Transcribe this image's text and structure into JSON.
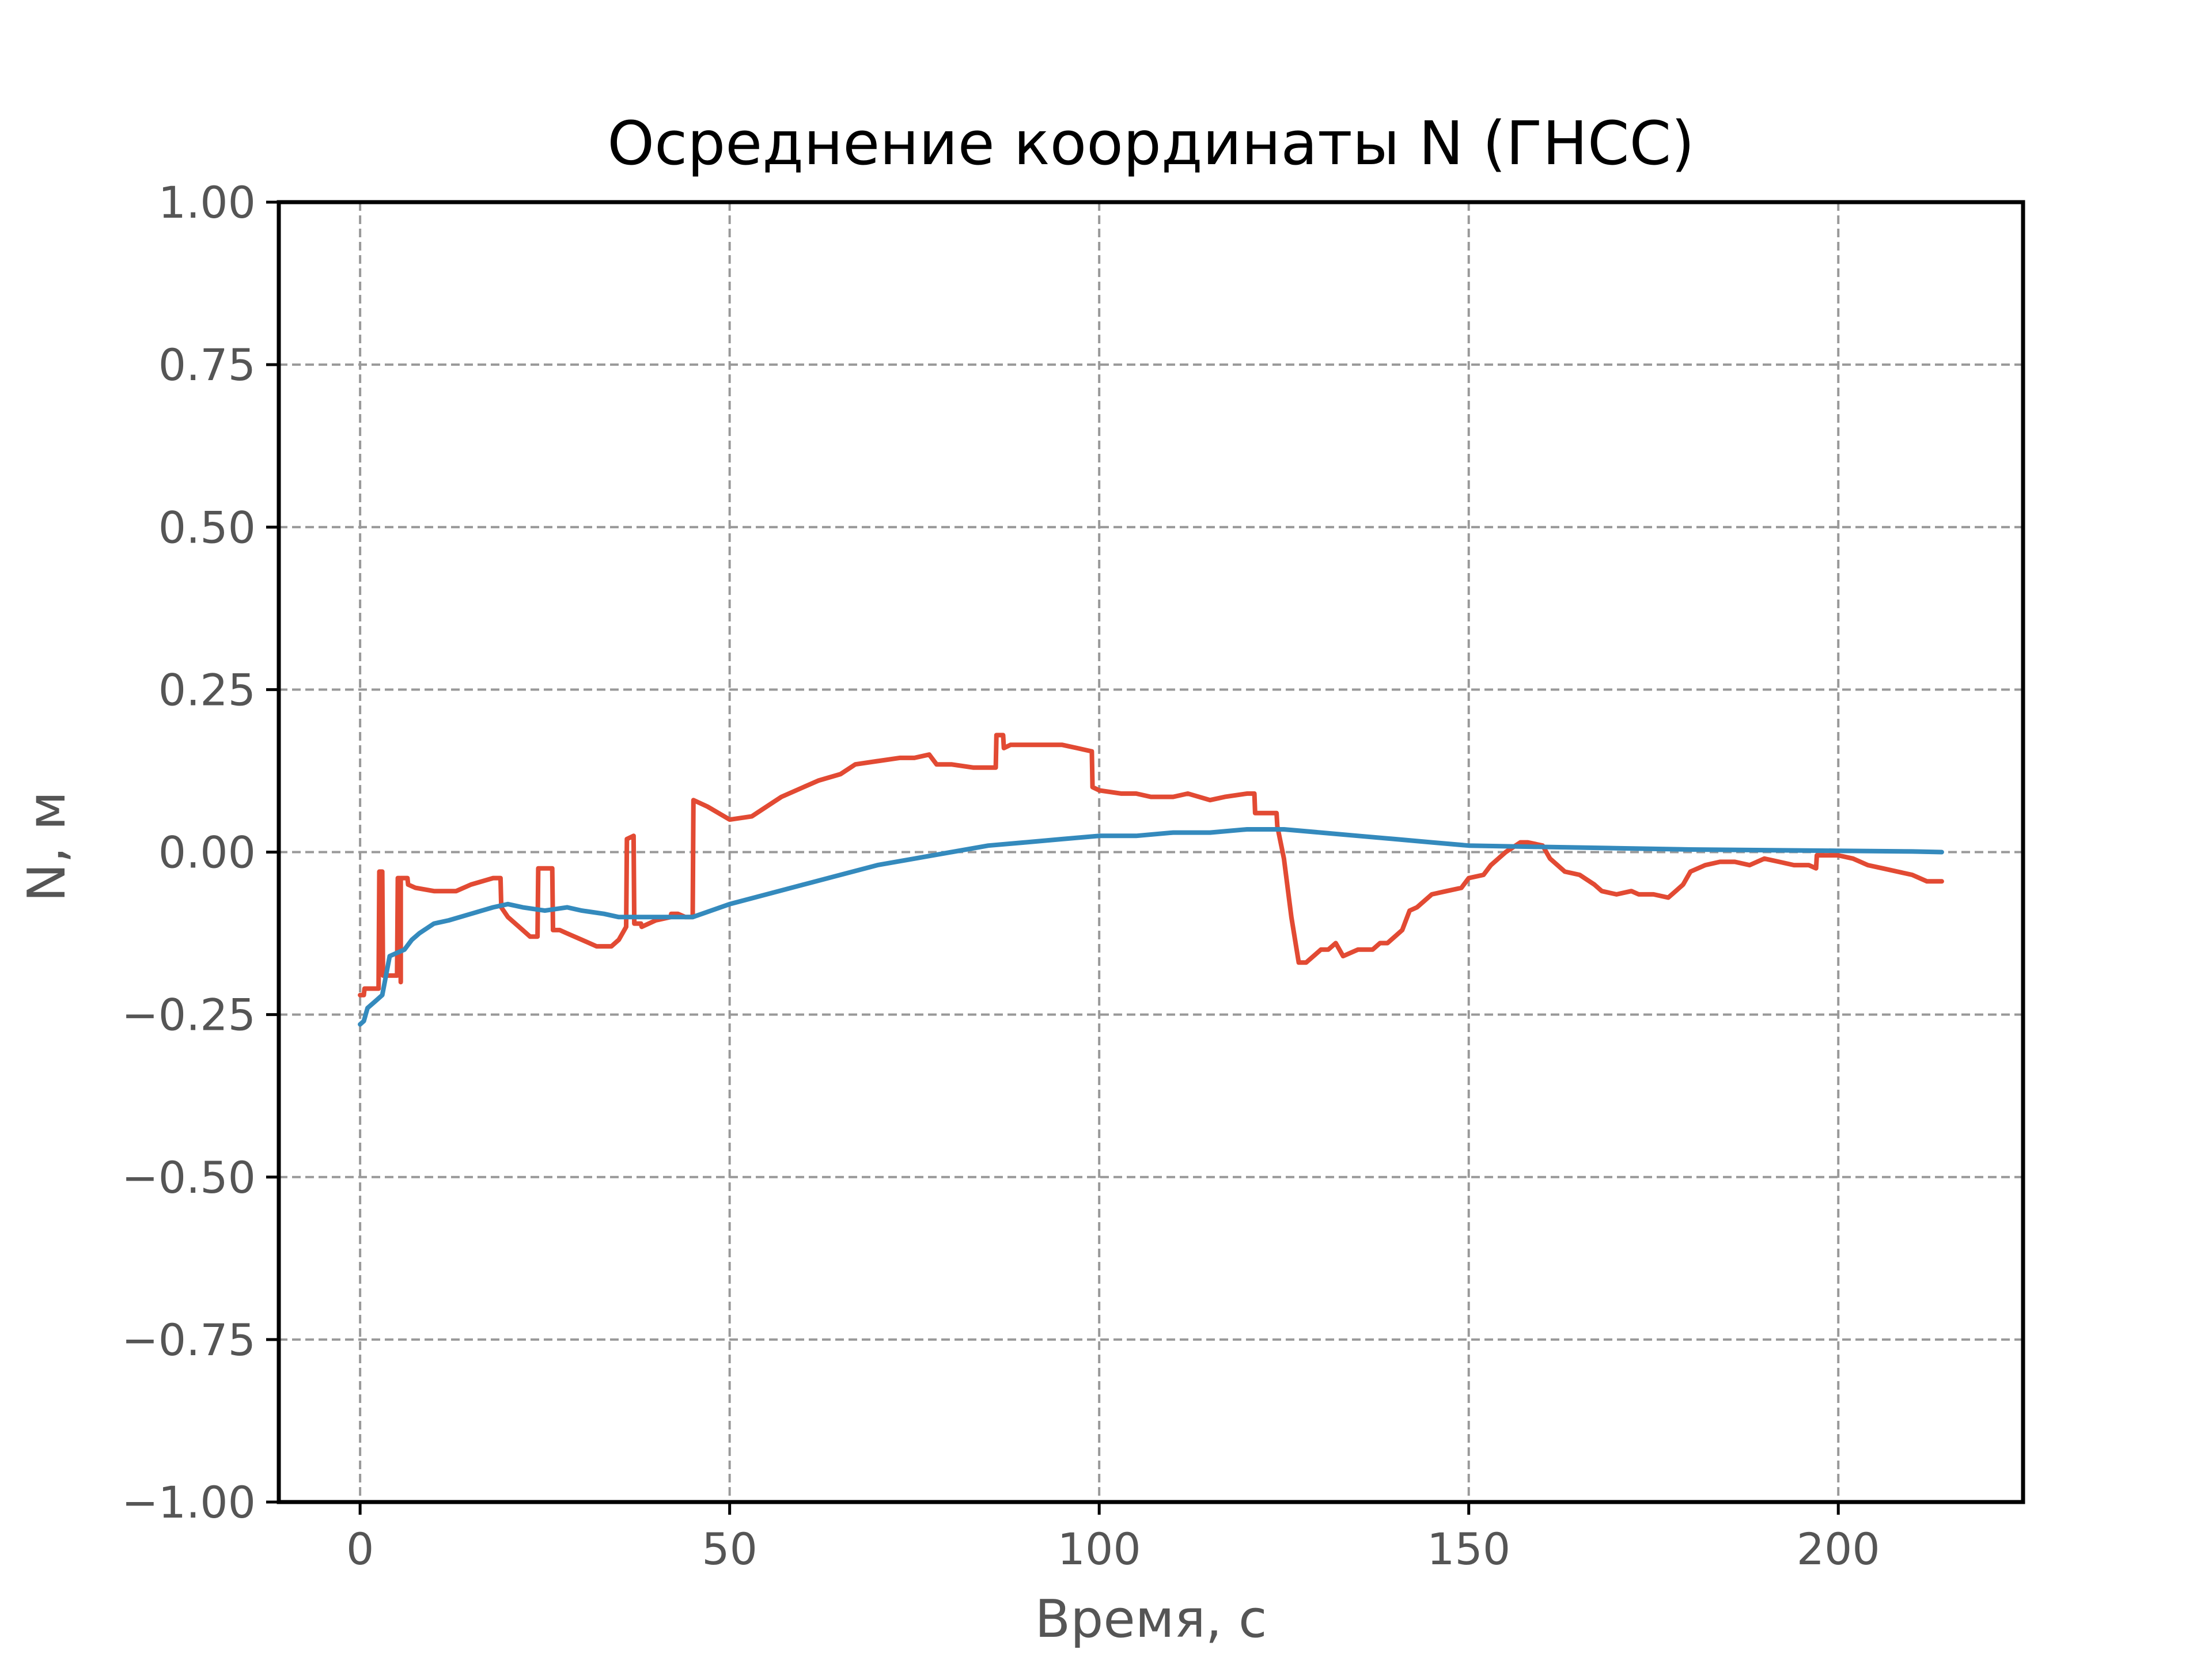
{
  "chart_data": {
    "type": "line",
    "title": "Осреднение координаты N (ГНСС)",
    "xlabel": "Время, с",
    "ylabel": "N, м",
    "xlim": [
      -11,
      225
    ],
    "ylim": [
      -1.0,
      1.0
    ],
    "grid": true,
    "x_ticks": [
      0,
      50,
      100,
      150,
      200
    ],
    "x_tick_labels": [
      "0",
      "50",
      "100",
      "150",
      "200"
    ],
    "y_ticks": [
      1.0,
      0.75,
      0.5,
      0.25,
      0.0,
      -0.25,
      -0.5,
      -0.75,
      -1.0
    ],
    "y_tick_labels": [
      "1.00",
      "0.75",
      "0.50",
      "0.25",
      "0.00",
      "−0.25",
      "−0.50",
      "−0.75",
      "−1.00"
    ],
    "series": [
      {
        "color": "#e24a33",
        "x": [
          0,
          0.5,
          0.6,
          2.5,
          2.6,
          3.0,
          3.1,
          5.0,
          5.1,
          5.4,
          5.5,
          5.5,
          6.4,
          6.5,
          7.5,
          10,
          13,
          15,
          18,
          19,
          19.1,
          20,
          22,
          23,
          24,
          24.1,
          25,
          26,
          26.1,
          27,
          28,
          30,
          32,
          34,
          35,
          36,
          36.1,
          37,
          37.1,
          38,
          38.1,
          40,
          42,
          42.1,
          43,
          44,
          45,
          45.1,
          47,
          50,
          53,
          55,
          57,
          60,
          62,
          65,
          67,
          70,
          73,
          75,
          77,
          78,
          80,
          83,
          85,
          86,
          86.1,
          87,
          87.1,
          88,
          90,
          95,
          97,
          99,
          99.1,
          100,
          103,
          105,
          107,
          110,
          112,
          115,
          117,
          120,
          121,
          121.1,
          123,
          124,
          124.1,
          125,
          126,
          127,
          128,
          130,
          131,
          132,
          133,
          135,
          137,
          138,
          139,
          140,
          141,
          142,
          143,
          145,
          147,
          149,
          150,
          152,
          153,
          155,
          157,
          158,
          160,
          161,
          163,
          165,
          167,
          168,
          170,
          172,
          173,
          175,
          177,
          178,
          179,
          180,
          182,
          184,
          186,
          188,
          190,
          192,
          194,
          196,
          197,
          197.1,
          198,
          200,
          202,
          204,
          206,
          208,
          210,
          212,
          214
        ],
        "y": [
          -0.22,
          -0.22,
          -0.21,
          -0.21,
          -0.03,
          -0.03,
          -0.19,
          -0.19,
          -0.04,
          -0.04,
          -0.2,
          -0.04,
          -0.04,
          -0.05,
          -0.055,
          -0.06,
          -0.06,
          -0.05,
          -0.04,
          -0.04,
          -0.085,
          -0.1,
          -0.12,
          -0.13,
          -0.13,
          -0.025,
          -0.025,
          -0.025,
          -0.12,
          -0.12,
          -0.125,
          -0.135,
          -0.145,
          -0.145,
          -0.135,
          -0.115,
          0.02,
          0.025,
          -0.11,
          -0.11,
          -0.115,
          -0.105,
          -0.1,
          -0.095,
          -0.095,
          -0.1,
          -0.1,
          0.08,
          0.07,
          0.05,
          0.055,
          0.07,
          0.085,
          0.1,
          0.11,
          0.12,
          0.135,
          0.14,
          0.145,
          0.145,
          0.15,
          0.135,
          0.135,
          0.13,
          0.13,
          0.13,
          0.18,
          0.18,
          0.16,
          0.165,
          0.165,
          0.165,
          0.16,
          0.155,
          0.1,
          0.095,
          0.09,
          0.09,
          0.085,
          0.085,
          0.09,
          0.08,
          0.085,
          0.09,
          0.09,
          0.06,
          0.06,
          0.06,
          0.04,
          -0.01,
          -0.1,
          -0.17,
          -0.17,
          -0.15,
          -0.15,
          -0.14,
          -0.16,
          -0.15,
          -0.15,
          -0.14,
          -0.14,
          -0.13,
          -0.12,
          -0.09,
          -0.085,
          -0.065,
          -0.06,
          -0.055,
          -0.04,
          -0.035,
          -0.02,
          0.0,
          0.015,
          0.015,
          0.01,
          -0.01,
          -0.03,
          -0.035,
          -0.05,
          -0.06,
          -0.065,
          -0.06,
          -0.065,
          -0.065,
          -0.07,
          -0.06,
          -0.05,
          -0.03,
          -0.02,
          -0.015,
          -0.015,
          -0.02,
          -0.01,
          -0.015,
          -0.02,
          -0.02,
          -0.025,
          -0.005,
          -0.005,
          -0.005,
          -0.01,
          -0.02,
          -0.025,
          -0.03,
          -0.035,
          -0.045,
          -0.045
        ]
      },
      {
        "color": "#348abd",
        "x": [
          0,
          0.5,
          1,
          2,
          3,
          4,
          5,
          6,
          7,
          8,
          10,
          12,
          15,
          18,
          20,
          22,
          25,
          28,
          30,
          33,
          35,
          40,
          45,
          50,
          55,
          60,
          65,
          70,
          75,
          80,
          85,
          90,
          95,
          100,
          105,
          110,
          115,
          120,
          125,
          130,
          135,
          140,
          145,
          150,
          160,
          170,
          180,
          190,
          200,
          210,
          214
        ],
        "y": [
          -0.265,
          -0.26,
          -0.24,
          -0.23,
          -0.22,
          -0.16,
          -0.155,
          -0.15,
          -0.135,
          -0.125,
          -0.11,
          -0.105,
          -0.095,
          -0.085,
          -0.08,
          -0.085,
          -0.09,
          -0.085,
          -0.09,
          -0.095,
          -0.1,
          -0.1,
          -0.1,
          -0.08,
          -0.065,
          -0.05,
          -0.035,
          -0.02,
          -0.01,
          0.0,
          0.01,
          0.015,
          0.02,
          0.025,
          0.025,
          0.03,
          0.03,
          0.035,
          0.035,
          0.03,
          0.025,
          0.02,
          0.015,
          0.01,
          0.008,
          0.006,
          0.004,
          0.003,
          0.002,
          0.001,
          0.0
        ]
      }
    ]
  }
}
